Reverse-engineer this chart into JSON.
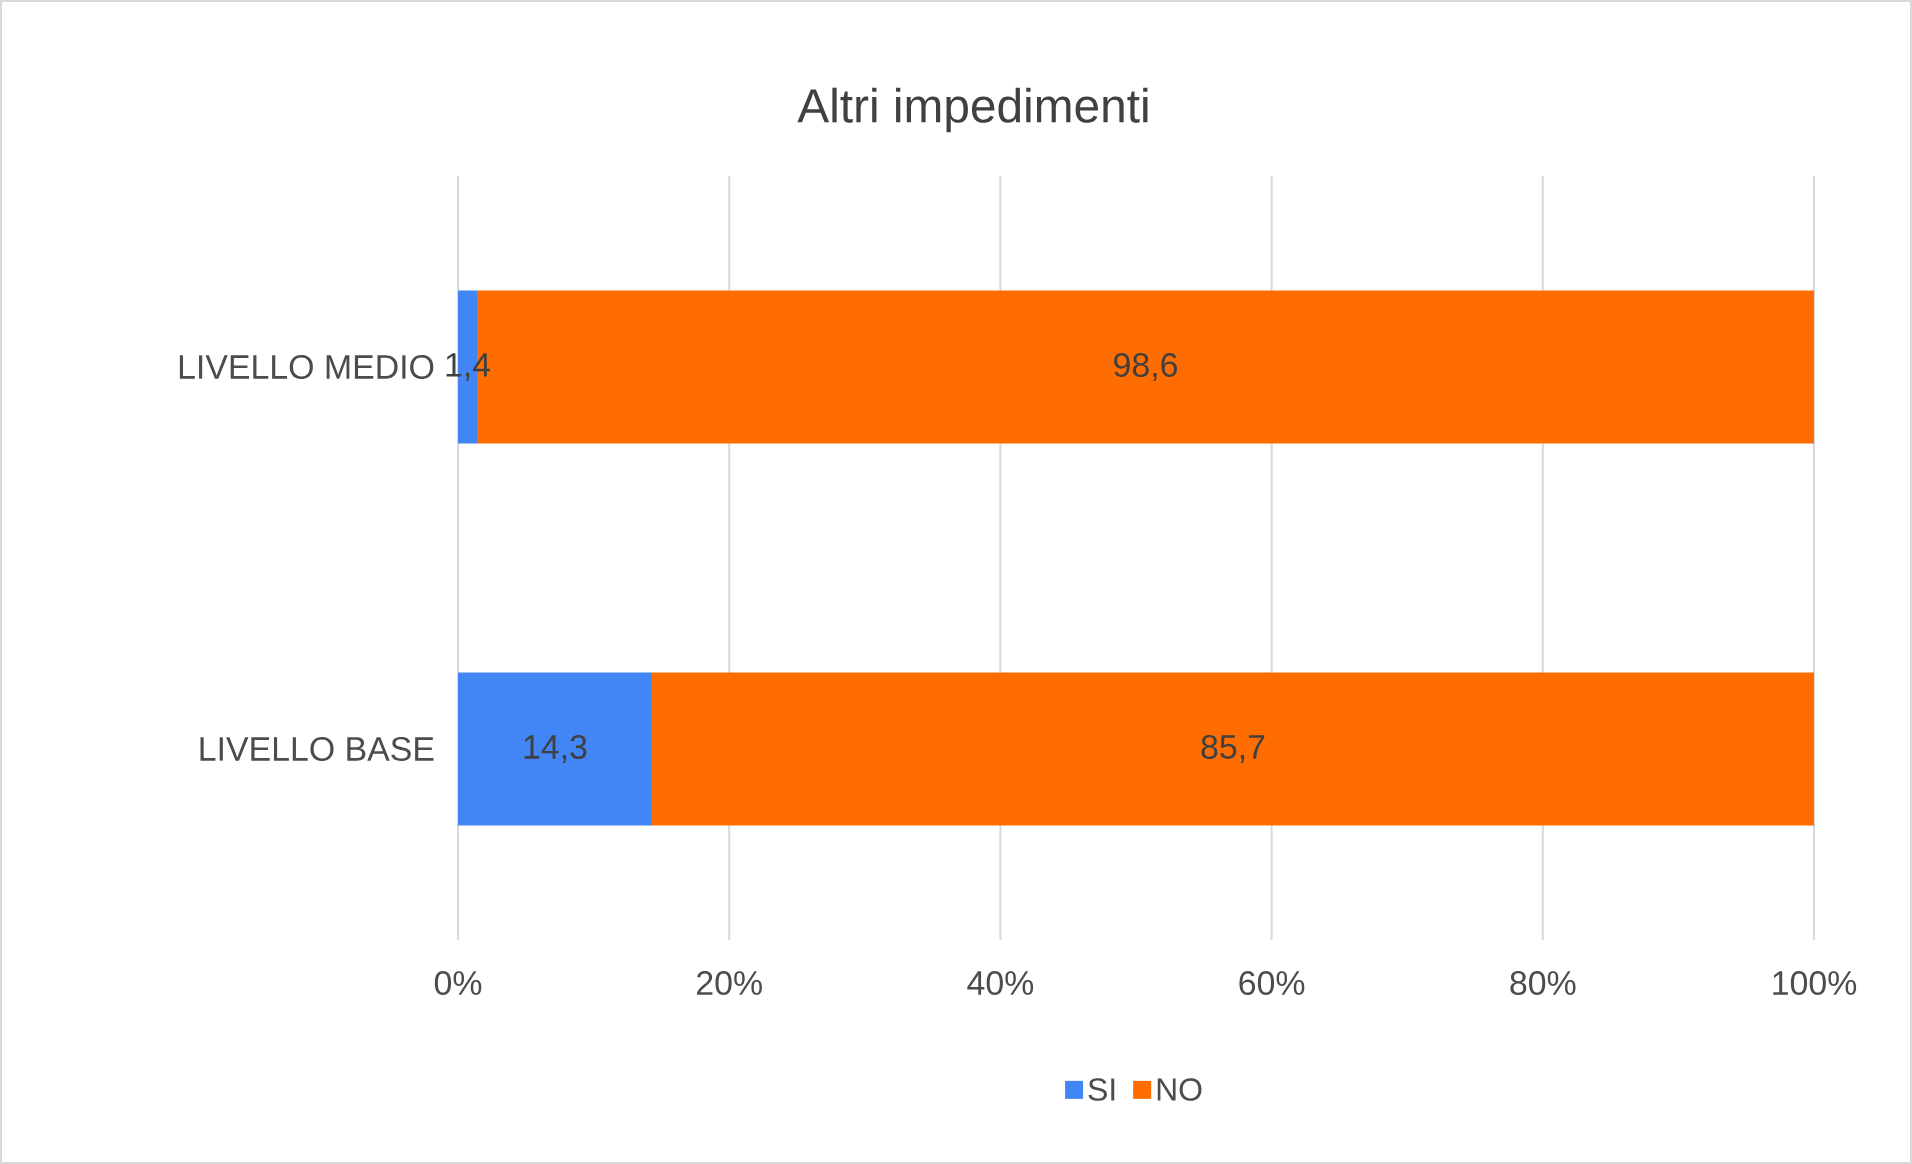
{
  "chart_data": {
    "type": "bar",
    "orientation": "horizontal",
    "stacked": true,
    "title": "Altri impedimenti",
    "categories": [
      "LIVELLO MEDIO",
      "LIVELLO BASE"
    ],
    "series": [
      {
        "name": "SI",
        "color": "#4285f4",
        "values": [
          1.4,
          14.3
        ],
        "value_labels": [
          "1,4",
          "14,3"
        ]
      },
      {
        "name": "NO",
        "color": "#ff6d01",
        "values": [
          98.6,
          85.7
        ],
        "value_labels": [
          "98,6",
          "85,7"
        ]
      }
    ],
    "xlim": [
      0,
      100
    ],
    "xticks": [
      {
        "value": 0,
        "label": "0%"
      },
      {
        "value": 20,
        "label": "20%"
      },
      {
        "value": 40,
        "label": "40%"
      },
      {
        "value": 60,
        "label": "60%"
      },
      {
        "value": 80,
        "label": "80%"
      },
      {
        "value": 100,
        "label": "100%"
      }
    ],
    "grid": "x",
    "legend": "bottom"
  }
}
